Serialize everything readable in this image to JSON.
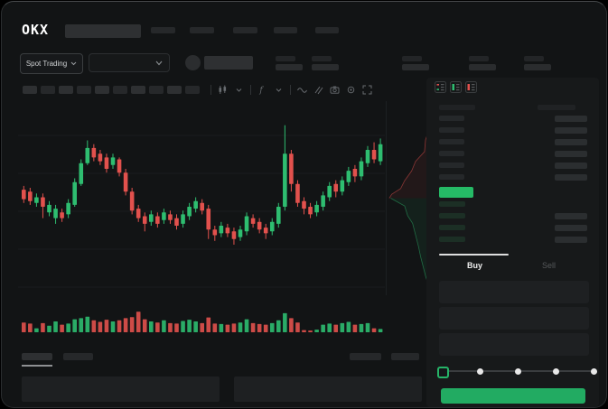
{
  "brand": {
    "logo_text": "OKX"
  },
  "nav": {
    "placeholder_items": 5
  },
  "market_selector": {
    "label": "Spot Trading"
  },
  "instrument_bar": {
    "stat_groups": 5
  },
  "toolbar": {
    "pill_count": 10,
    "icons": [
      "chart-type",
      "chevron-down",
      "indicators",
      "chevron-down",
      "line-tool",
      "draw-tool",
      "camera",
      "settings-gear",
      "fullscreen"
    ]
  },
  "orderbook": {
    "view_icons": [
      "book-combined",
      "book-bids-only",
      "book-asks-only"
    ],
    "asks": [
      [
        28,
        36
      ],
      [
        28,
        36
      ],
      [
        28,
        36
      ],
      [
        28,
        36
      ],
      [
        28,
        36
      ],
      [
        28,
        36
      ]
    ],
    "bids": [
      [
        29,
        0
      ],
      [
        29,
        36
      ],
      [
        29,
        36
      ],
      [
        29,
        36
      ]
    ],
    "last_price_color": "#25ba66"
  },
  "trade_panel": {
    "tabs": [
      {
        "label": "Buy",
        "active": true
      },
      {
        "label": "Sell",
        "active": false
      }
    ],
    "field_placeholders": 3,
    "slider": {
      "stops": 5,
      "active_stop": 0
    },
    "submit_button_color": "#22ab62"
  },
  "colors": {
    "up": "#2ebd70",
    "down": "#e2514d",
    "bg": "#121415",
    "panel": "#17191a",
    "placeholder": "#26282a"
  },
  "chart_data": [
    {
      "type": "candlestick",
      "title": "",
      "xlabel": "",
      "ylabel": "",
      "note": "no axis tick labels visible; prices normalized 0-100",
      "up_color": "#2ebd70",
      "down_color": "#e2514d",
      "grid": "faint horizontal lines",
      "candles_ochl": [
        [
          59,
          54,
          61,
          52
        ],
        [
          58,
          53,
          60,
          51
        ],
        [
          52,
          55,
          57,
          50
        ],
        [
          55,
          50,
          57,
          44
        ],
        [
          47,
          51,
          53,
          45
        ],
        [
          44,
          49,
          51,
          41
        ],
        [
          47,
          44,
          49,
          42
        ],
        [
          46,
          52,
          54,
          44
        ],
        [
          51,
          63,
          65,
          50
        ],
        [
          62,
          73,
          75,
          61
        ],
        [
          73,
          81,
          85,
          72
        ],
        [
          81,
          76,
          83,
          74
        ],
        [
          78,
          74,
          80,
          72
        ],
        [
          76,
          70,
          78,
          68
        ],
        [
          72,
          76,
          78,
          70
        ],
        [
          75,
          68,
          76,
          66
        ],
        [
          68,
          58,
          70,
          56
        ],
        [
          58,
          48,
          60,
          46
        ],
        [
          49,
          44,
          51,
          42
        ],
        [
          45,
          41,
          47,
          37
        ],
        [
          42,
          46,
          48,
          40
        ],
        [
          45,
          41,
          47,
          39
        ],
        [
          43,
          47,
          49,
          41
        ],
        [
          46,
          43,
          48,
          41
        ],
        [
          44,
          40,
          46,
          38
        ],
        [
          41,
          46,
          48,
          39
        ],
        [
          45,
          50,
          52,
          43
        ],
        [
          49,
          53,
          55,
          47
        ],
        [
          52,
          48,
          54,
          46
        ],
        [
          49,
          38,
          51,
          33
        ],
        [
          38,
          35,
          40,
          32
        ],
        [
          36,
          40,
          42,
          34
        ],
        [
          39,
          36,
          41,
          34
        ],
        [
          37,
          33,
          39,
          30
        ],
        [
          34,
          38,
          40,
          32
        ],
        [
          37,
          45,
          47,
          35
        ],
        [
          44,
          41,
          46,
          39
        ],
        [
          42,
          38,
          44,
          36
        ],
        [
          39,
          36,
          41,
          33
        ],
        [
          37,
          42,
          44,
          35
        ],
        [
          41,
          50,
          52,
          39
        ],
        [
          50,
          78,
          93,
          48
        ],
        [
          78,
          62,
          80,
          58
        ],
        [
          62,
          52,
          64,
          50
        ],
        [
          53,
          49,
          55,
          46
        ],
        [
          50,
          46,
          52,
          44
        ],
        [
          47,
          51,
          53,
          45
        ],
        [
          50,
          56,
          58,
          48
        ],
        [
          55,
          61,
          63,
          53
        ],
        [
          62,
          58,
          64,
          55
        ],
        [
          58,
          64,
          66,
          56
        ],
        [
          63,
          69,
          71,
          61
        ],
        [
          70,
          66,
          72,
          63
        ],
        [
          66,
          74,
          76,
          64
        ],
        [
          73,
          80,
          82,
          71
        ],
        [
          80,
          75,
          84,
          73
        ],
        [
          74,
          83,
          86,
          72
        ]
      ]
    },
    {
      "type": "bar",
      "name": "volume",
      "note": "bar colors follow candle direction; heights normalized 0-100",
      "values": [
        45,
        40,
        18,
        42,
        30,
        50,
        35,
        40,
        60,
        65,
        72,
        55,
        48,
        58,
        50,
        55,
        65,
        70,
        95,
        60,
        50,
        45,
        55,
        42,
        40,
        52,
        58,
        50,
        42,
        68,
        40,
        38,
        35,
        40,
        45,
        60,
        42,
        38,
        35,
        42,
        55,
        88,
        65,
        45,
        10,
        8,
        12,
        35,
        40,
        35,
        42,
        48,
        35,
        38,
        42,
        18,
        15
      ]
    },
    {
      "type": "area",
      "name": "depth-profile",
      "orientation": "vertical",
      "note": "cumulative depth vs price position, normalized [depth,position]",
      "asks_curve": [
        [
          1.0,
          0.0
        ],
        [
          0.96,
          0.05
        ],
        [
          0.9,
          0.09
        ],
        [
          0.88,
          0.14
        ],
        [
          0.8,
          0.2
        ],
        [
          0.78,
          0.26
        ],
        [
          0.6,
          0.31
        ],
        [
          0.52,
          0.36
        ],
        [
          0.38,
          0.41
        ],
        [
          0.3,
          0.45
        ],
        [
          0.12,
          0.48
        ],
        [
          0.07,
          0.5
        ]
      ],
      "bids_curve": [
        [
          0.1,
          0.5
        ],
        [
          0.38,
          0.54
        ],
        [
          0.44,
          0.59
        ],
        [
          0.54,
          0.63
        ],
        [
          0.6,
          0.69
        ],
        [
          0.66,
          0.75
        ],
        [
          0.7,
          0.8
        ],
        [
          0.76,
          0.86
        ],
        [
          0.8,
          0.9
        ],
        [
          0.86,
          0.95
        ],
        [
          0.93,
          1.0
        ]
      ]
    }
  ]
}
